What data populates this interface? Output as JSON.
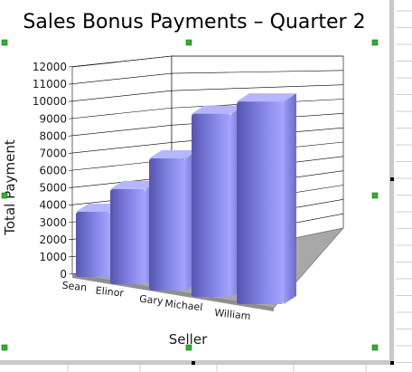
{
  "chart_data": {
    "type": "bar",
    "title": "Sales Bonus Payments – Quarter 2",
    "xlabel": "Seller",
    "ylabel": "Total Payment",
    "categories": [
      "Sean",
      "Elinor",
      "Gary",
      "Michael",
      "William"
    ],
    "values": [
      3700,
      5400,
      7500,
      10400,
      11500
    ],
    "ylim": [
      0,
      12000
    ],
    "yticks": [
      "0",
      "1000",
      "2000",
      "3000",
      "4000",
      "5000",
      "6000",
      "7000",
      "8000",
      "9000",
      "10000",
      "11000",
      "12000"
    ],
    "grid": true,
    "style": "3d",
    "legend": "none"
  },
  "colors": {
    "bar_front_dark": "#5a5ab4",
    "bar_front_light": "#9a9af5",
    "bar_top": "#b6b6ff",
    "bar_side": "#4d4da8",
    "floor": "#a8a8a8",
    "floor_edge": "#7a7a7a",
    "grid": "#000000",
    "selection_handle": "#2cb32c",
    "sheet_grid": "#cfcfcf",
    "frame_border": "#c8c8c8"
  }
}
